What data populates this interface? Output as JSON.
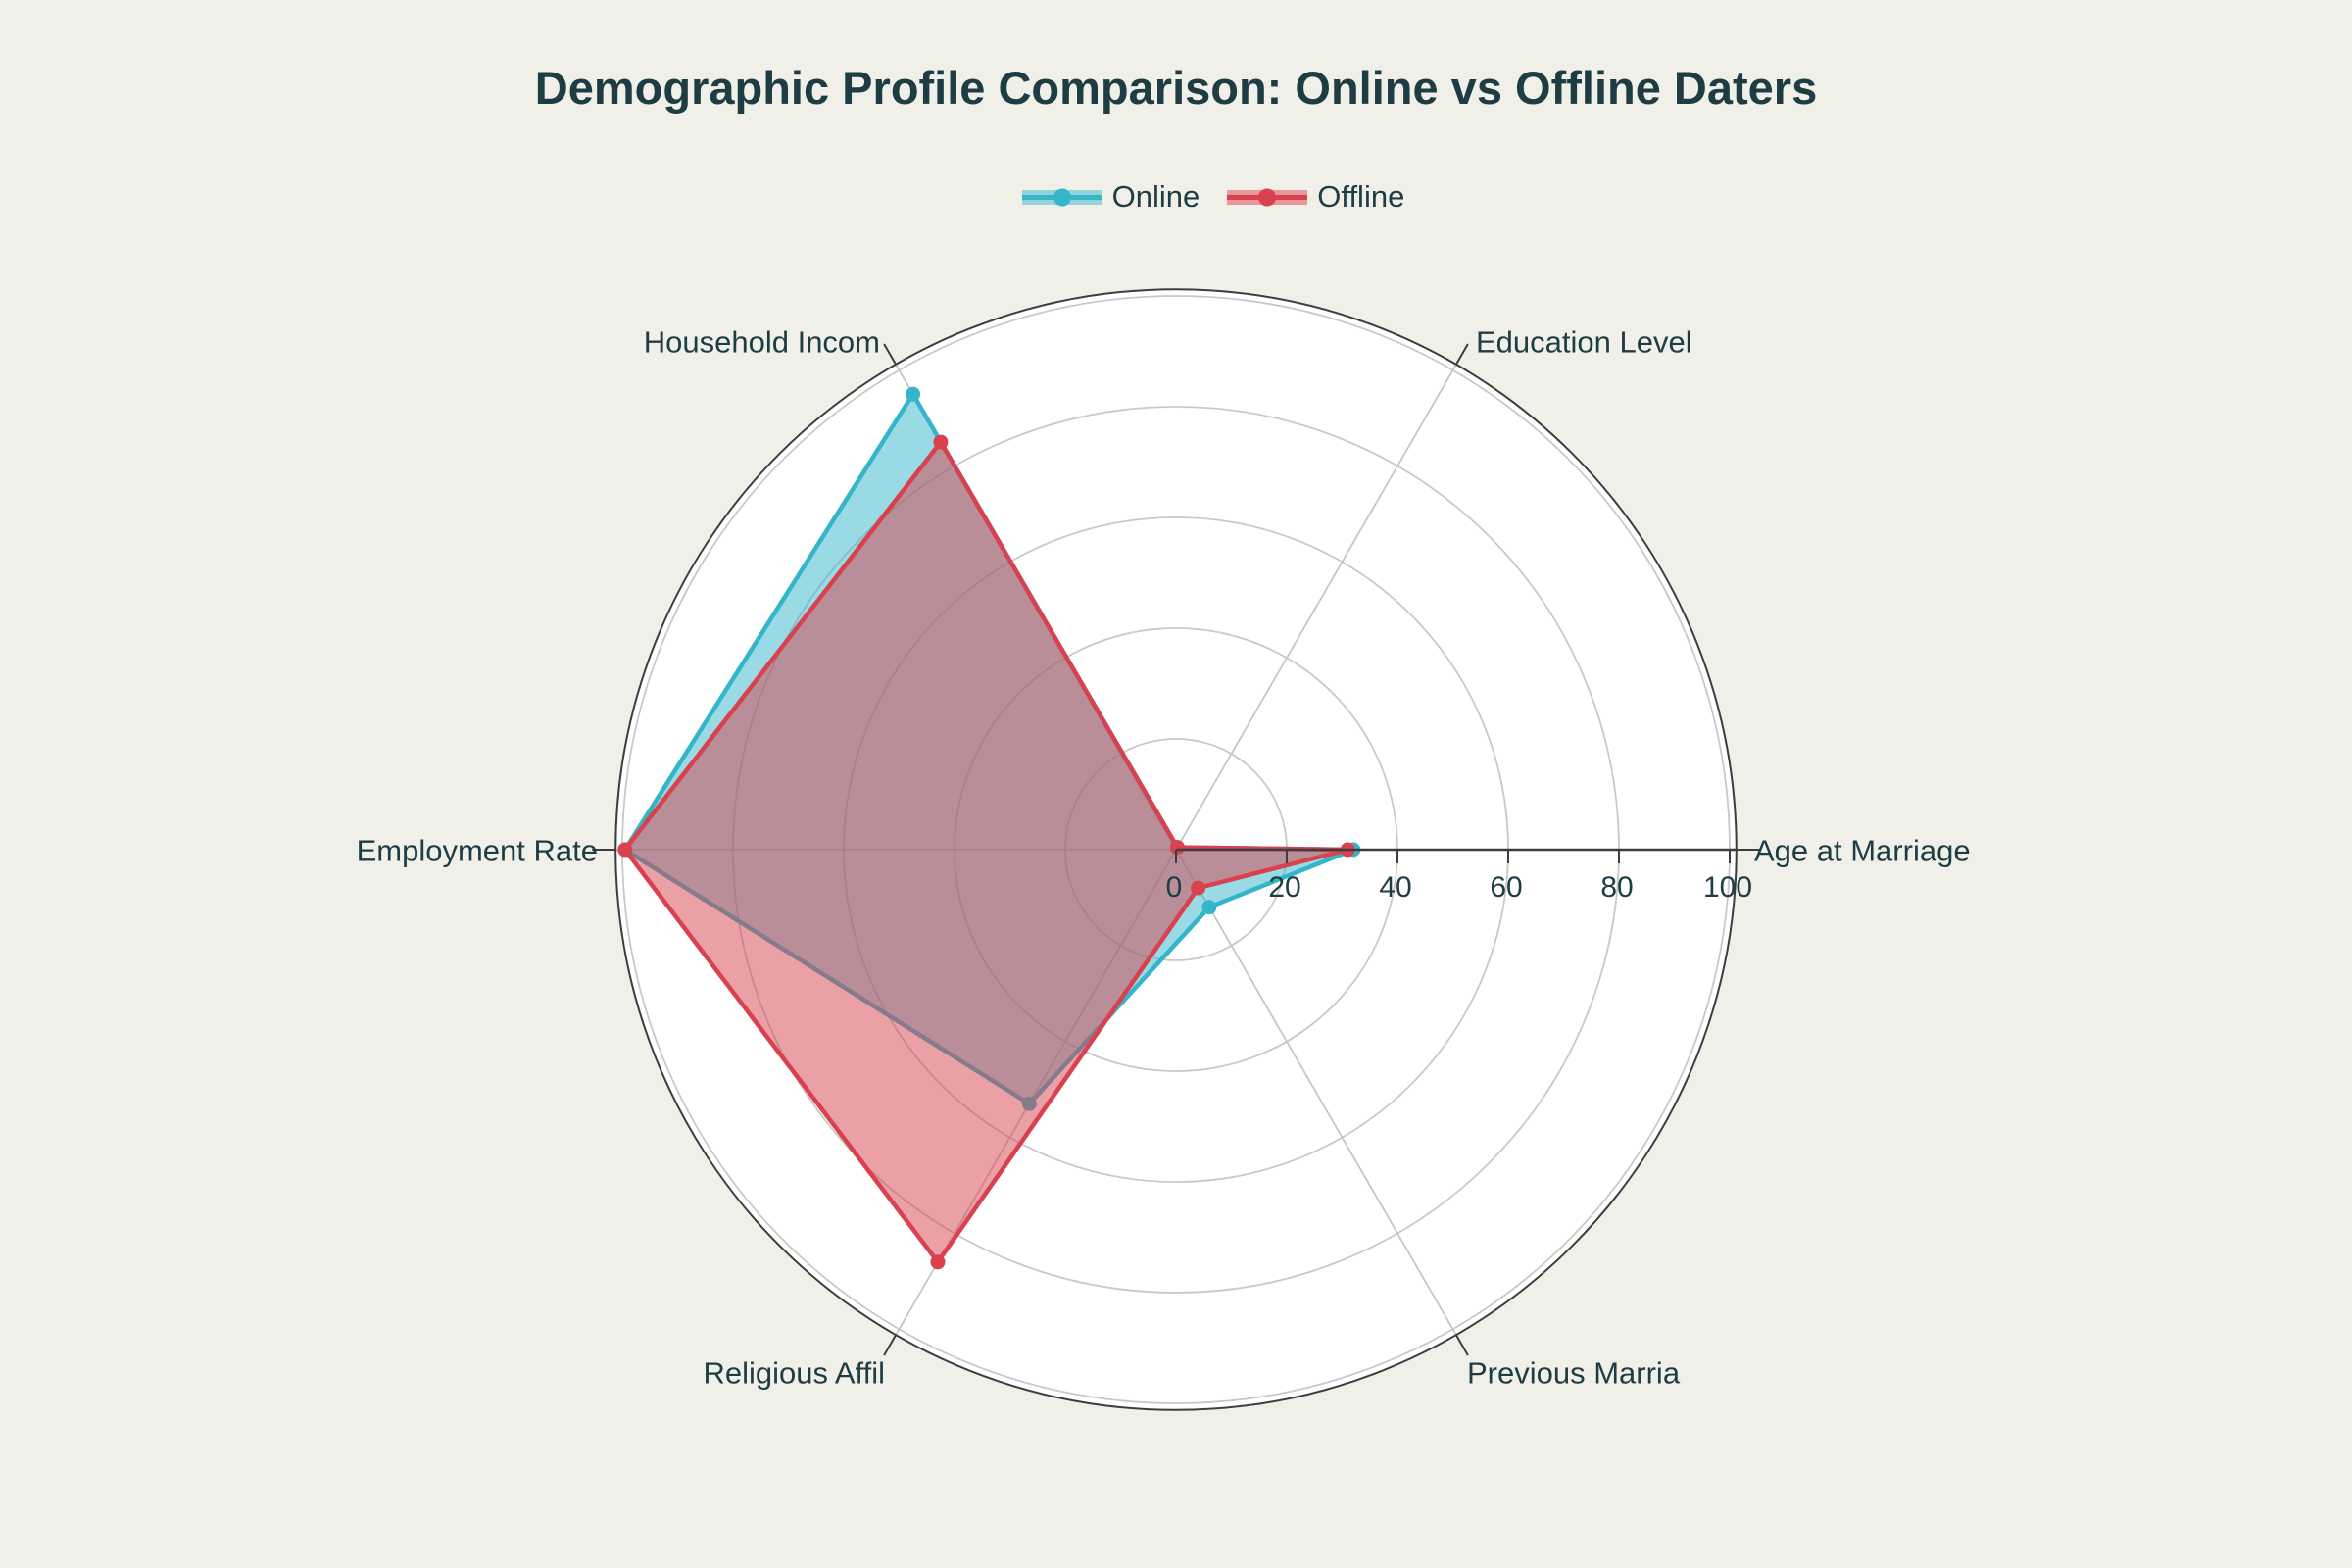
{
  "page": {
    "background_color": "#f0f0e9",
    "text_color": "#1d3c43",
    "plot_bg_color": "#ffffff"
  },
  "chart_data": {
    "type": "radar",
    "title": "Demographic Profile Comparison: Online vs Offline Daters",
    "categories": [
      "Age at Marriage",
      "Education Level",
      "Household Incom",
      "Employment Rate",
      "Religious Affil",
      "Previous Marria"
    ],
    "angles_deg": [
      0,
      60,
      120,
      180,
      240,
      300
    ],
    "series": [
      {
        "name": "Online",
        "color": "#35b5c9",
        "fill_opacity": 0.5,
        "values": [
          32,
          0.5,
          95,
          99.5,
          53,
          12
        ]
      },
      {
        "name": "Offline",
        "color": "#d8414d",
        "fill_opacity": 0.5,
        "values": [
          31,
          0.5,
          85,
          99.5,
          86,
          8
        ]
      }
    ],
    "radial_axis": {
      "ticks": [
        0,
        20,
        40,
        60,
        80,
        100
      ],
      "tick_labels": [
        "0",
        "20",
        "40",
        "60",
        "80",
        "100"
      ],
      "range": [
        0,
        101.2
      ]
    },
    "legend_position": "top-center",
    "grid": true,
    "styles": {
      "grid_color": "#c9c9c9",
      "spoke_color": "#c6c6c6",
      "axis_color": "#3d3d3d",
      "label_color": "#1d3c43"
    }
  }
}
